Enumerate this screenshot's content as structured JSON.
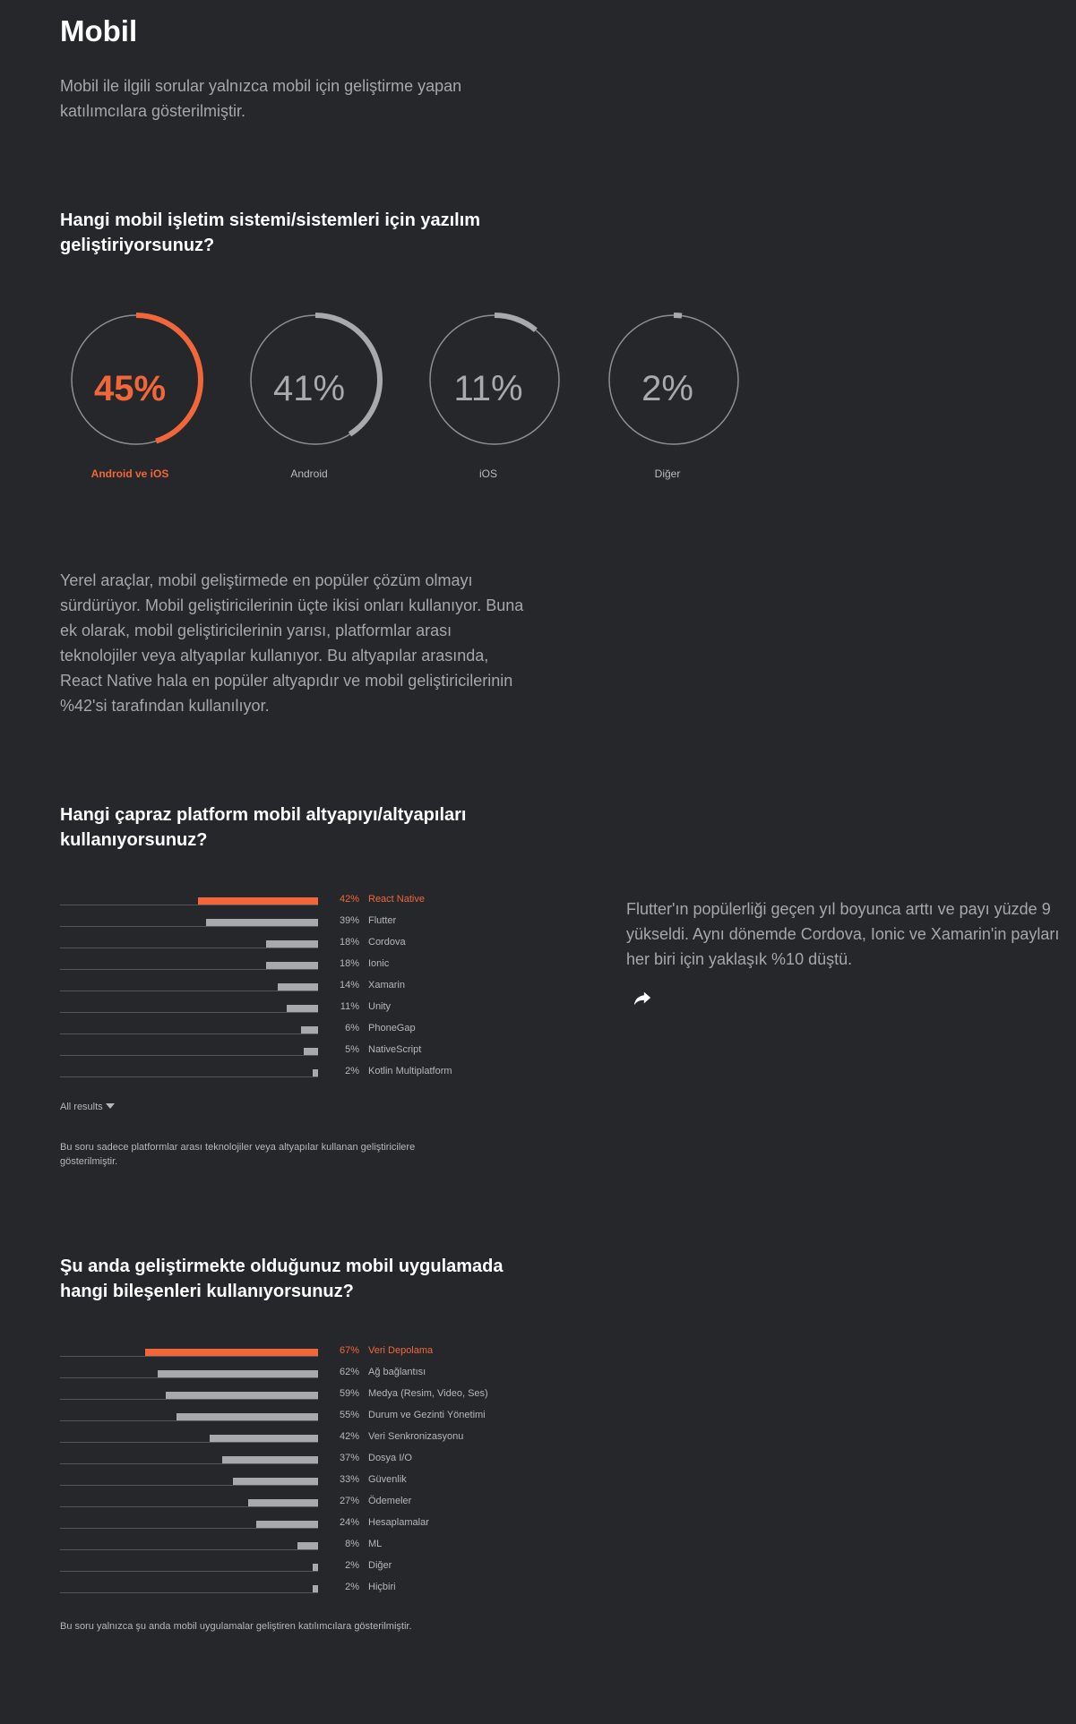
{
  "page": {
    "title": "Mobil",
    "intro": "Mobil ile ilgili sorular yalnızca mobil için geliştirme yapan katılımcılara gösterilmiştir."
  },
  "q1": {
    "title": "Hangi mobil işletim sistemi/sistemleri için yazılım geliştiriyorsunuz?"
  },
  "paragraph": "Yerel araçlar, mobil geliştirmede en popüler çözüm olmayı sürdürüyor. Mobil geliştiricilerinin üçte ikisi onları kullanıyor. Buna ek olarak, mobil geliştiricilerinin yarısı, platformlar arası teknolojiler veya altyapılar kullanıyor. Bu altyapılar arasında, React Native hala en popüler altyapıdır ve mobil geliştiricilerinin %42'si tarafından kullanılıyor.",
  "q2": {
    "title": "Hangi çapraz platform mobil altyapıyı/altyapıları kullanıyorsunuz?",
    "all_results": "All results",
    "note": "Bu soru sadece platformlar arası teknolojiler veya altyapılar kullanan geliştiricilere gösterilmiştir.",
    "side_text": "Flutter'ın popülerliği geçen yıl boyunca arttı ve payı yüzde 9 yükseldi. Aynı dönemde Cordova, Ionic ve Xamarin'in payları her biri için yaklaşık %10 düştü."
  },
  "q3": {
    "title": "Şu anda geliştirmekte olduğunuz mobil uygulamada hangi bileşenleri kullanıyorsunuz?",
    "note": "Bu soru yalnızca şu anda mobil uygulamalar geliştiren katılımcılara gösterilmiştir."
  },
  "colors": {
    "accent": "#f1673a",
    "bar": "#a8a9ad",
    "background": "#26272b"
  },
  "icons": {
    "share": "share-arrow-icon",
    "all_results": "caret-down-icon"
  },
  "chart_data": [
    {
      "type": "pie",
      "style": "donut",
      "categories": [
        "Android ve iOS",
        "Android",
        "iOS",
        "Diğer"
      ],
      "values": [
        45,
        41,
        11,
        2
      ],
      "value_labels": [
        "45%",
        "41%",
        "11%",
        "2%"
      ],
      "highlight": 0
    },
    {
      "type": "bar",
      "orientation": "horizontal",
      "categories": [
        "React Native",
        "Flutter",
        "Cordova",
        "Ionic",
        "Xamarin",
        "Unity",
        "PhoneGap",
        "NativeScript",
        "Kotlin Multiplatform"
      ],
      "values": [
        42,
        39,
        18,
        18,
        14,
        11,
        6,
        5,
        2
      ],
      "value_labels": [
        "42%",
        "39%",
        "18%",
        "18%",
        "14%",
        "11%",
        "6%",
        "5%",
        "2%"
      ],
      "xlim": [
        0,
        90
      ],
      "highlight": 0
    },
    {
      "type": "bar",
      "orientation": "horizontal",
      "categories": [
        "Veri Depolama",
        "Ağ bağlantısı",
        "Medya (Resim, Video, Ses)",
        "Durum ve Gezinti Yönetimi",
        "Veri Senkronizasyonu",
        "Dosya I/O",
        "Güvenlik",
        "Ödemeler",
        "Hesaplamalar",
        "ML",
        "Diğer",
        "Hiçbiri"
      ],
      "values": [
        67,
        62,
        59,
        55,
        42,
        37,
        33,
        27,
        24,
        8,
        2,
        2
      ],
      "value_labels": [
        "67%",
        "62%",
        "59%",
        "55%",
        "42%",
        "37%",
        "33%",
        "27%",
        "24%",
        "8%",
        "2%",
        "2%"
      ],
      "xlim": [
        0,
        100
      ],
      "highlight": 0
    }
  ]
}
